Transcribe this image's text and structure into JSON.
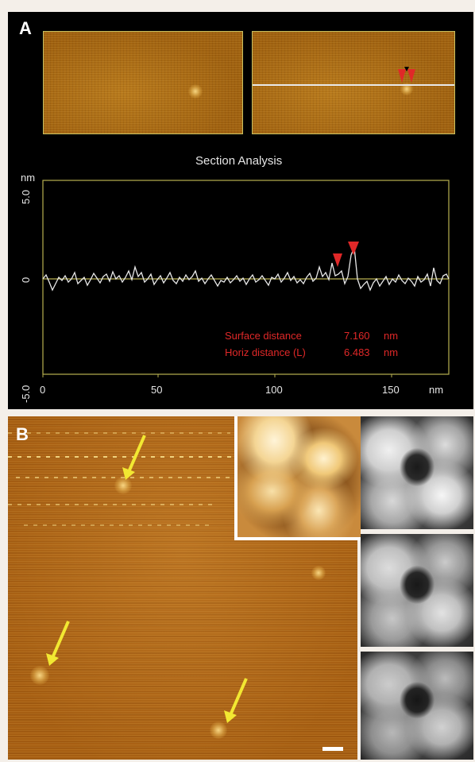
{
  "panel_a": {
    "letter": "A",
    "section_title": "Section Analysis",
    "y_unit": "nm",
    "y_ticks": [
      "5.0",
      "0",
      "-5.0"
    ],
    "x_ticks": [
      "0",
      "50",
      "100",
      "150"
    ],
    "x_unit": "nm",
    "surface_distance_label": "Surface distance",
    "surface_distance_value": "7.160",
    "surface_distance_unit": "nm",
    "horiz_distance_label": "Horiz distance (L)",
    "horiz_distance_value": "6.483",
    "horiz_distance_unit": "nm",
    "marker_color": "#e02828"
  },
  "panel_b": {
    "letter": "B",
    "arrow_color": "#f2e832"
  }
}
